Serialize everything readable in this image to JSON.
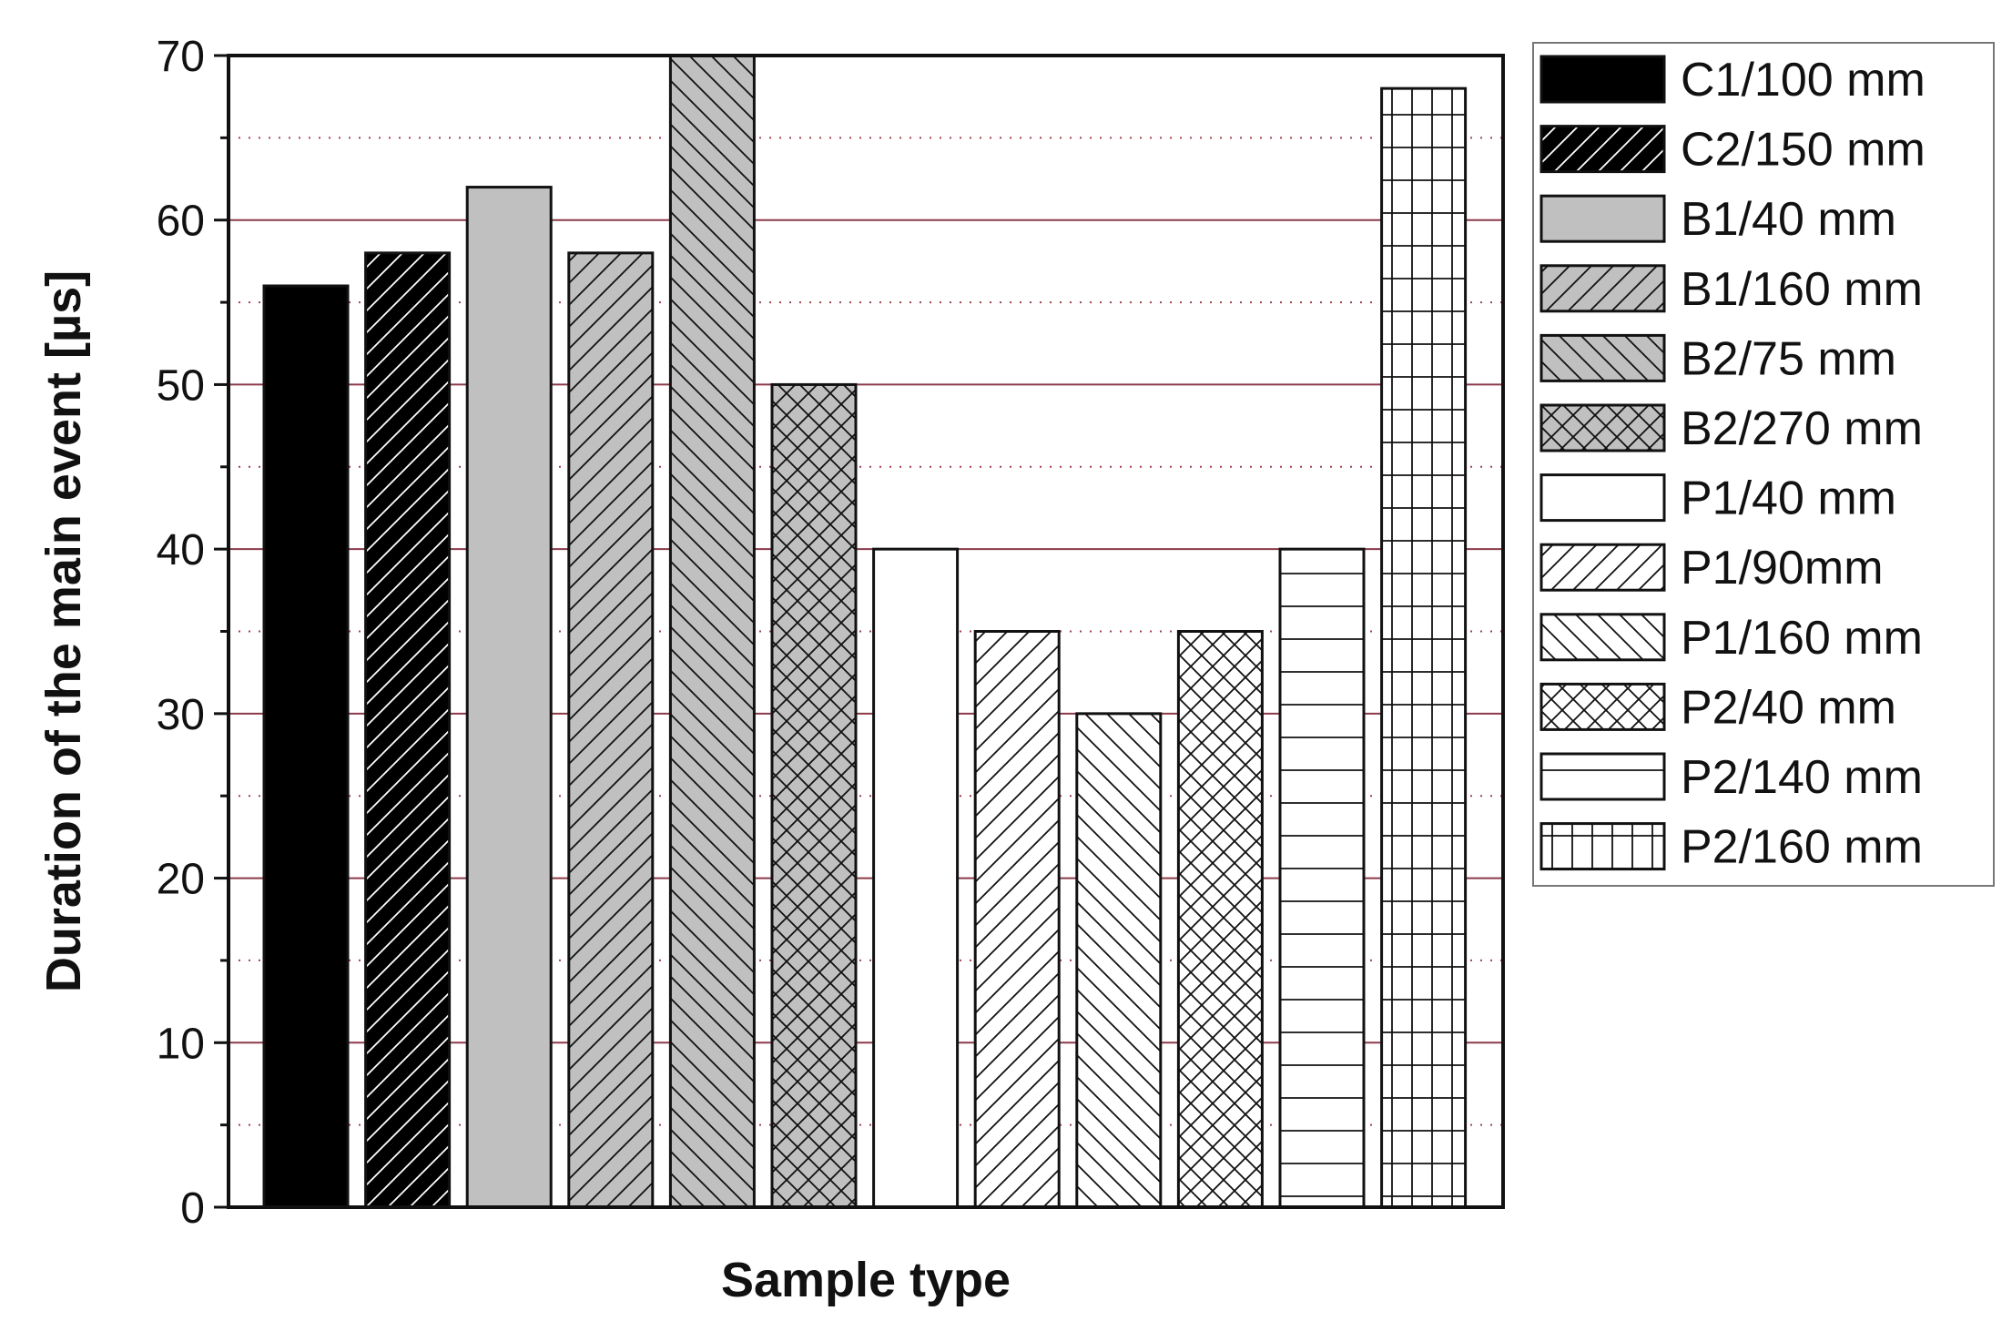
{
  "chart_data": {
    "type": "bar",
    "title": "",
    "xlabel": "Sample type",
    "ylabel": "Duration of the main event [µs]",
    "ylim": [
      0,
      70
    ],
    "yticks": [
      0,
      10,
      20,
      30,
      40,
      50,
      60,
      70
    ],
    "minor_grid": [
      5,
      15,
      25,
      35,
      45,
      55,
      65
    ],
    "grid": true,
    "legend_position": "right, outside plot",
    "colors": {
      "black": "#000000",
      "gray": "#c0c0c0",
      "white": "#ffffff",
      "major_grid": "#8b3a4a",
      "minor_grid": "#a04050",
      "axis": "#111111"
    },
    "series": [
      {
        "name": "C1/100 mm",
        "value": 56,
        "fill": "black",
        "pattern": "solid"
      },
      {
        "name": "C2/150 mm",
        "value": 58,
        "fill": "black",
        "pattern": "forward"
      },
      {
        "name": "B1/40 mm",
        "value": 62,
        "fill": "gray",
        "pattern": "solid"
      },
      {
        "name": "B1/160 mm",
        "value": 58,
        "fill": "gray",
        "pattern": "forward"
      },
      {
        "name": "B2/75 mm",
        "value": 70,
        "fill": "gray",
        "pattern": "backward"
      },
      {
        "name": "B2/270 mm",
        "value": 50,
        "fill": "gray",
        "pattern": "cross"
      },
      {
        "name": "P1/40 mm",
        "value": 40,
        "fill": "white",
        "pattern": "solid"
      },
      {
        "name": "P1/90mm",
        "value": 35,
        "fill": "white",
        "pattern": "forward"
      },
      {
        "name": "P1/160 mm",
        "value": 30,
        "fill": "white",
        "pattern": "backward"
      },
      {
        "name": "P2/40 mm",
        "value": 35,
        "fill": "white",
        "pattern": "cross"
      },
      {
        "name": "P2/140 mm",
        "value": 40,
        "fill": "white",
        "pattern": "horizontal"
      },
      {
        "name": "P2/160 mm",
        "value": 68,
        "fill": "white",
        "pattern": "grid"
      }
    ]
  }
}
